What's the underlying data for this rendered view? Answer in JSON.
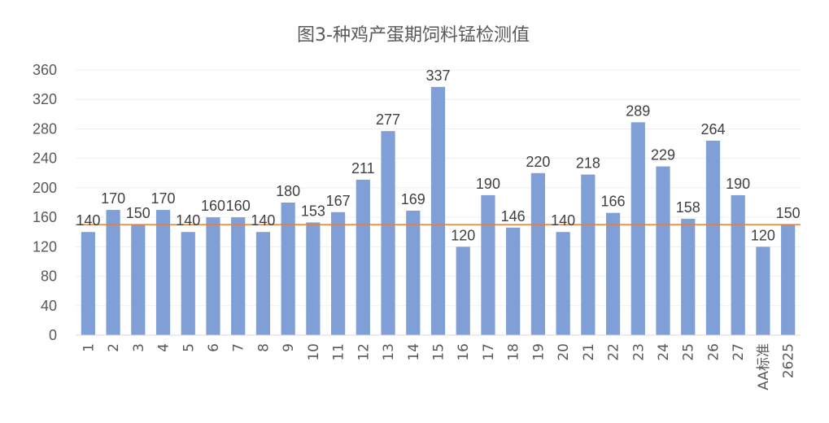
{
  "chart_data": {
    "type": "bar",
    "title": "图3-种鸡产蛋期饲料锰检测值",
    "xlabel": "",
    "ylabel": "",
    "categories": [
      "1",
      "2",
      "3",
      "4",
      "5",
      "6",
      "7",
      "8",
      "9",
      "10",
      "11",
      "12",
      "13",
      "14",
      "15",
      "16",
      "17",
      "18",
      "19",
      "20",
      "21",
      "22",
      "23",
      "24",
      "25",
      "26",
      "27",
      "AA标准",
      "2625"
    ],
    "values": [
      140,
      170,
      150,
      170,
      140,
      160,
      160,
      140,
      180,
      153,
      167,
      211,
      277,
      169,
      337,
      120,
      190,
      146,
      220,
      140,
      218,
      166,
      289,
      229,
      158,
      264,
      190,
      120,
      150
    ],
    "ylim": [
      0,
      360
    ],
    "yticks": [
      0,
      40,
      80,
      120,
      160,
      200,
      240,
      280,
      320,
      360
    ],
    "reference_line": {
      "value": 150,
      "color": "#ed7d31"
    },
    "bar_color": "#7f9fd6",
    "grid": true,
    "legend": "none"
  }
}
